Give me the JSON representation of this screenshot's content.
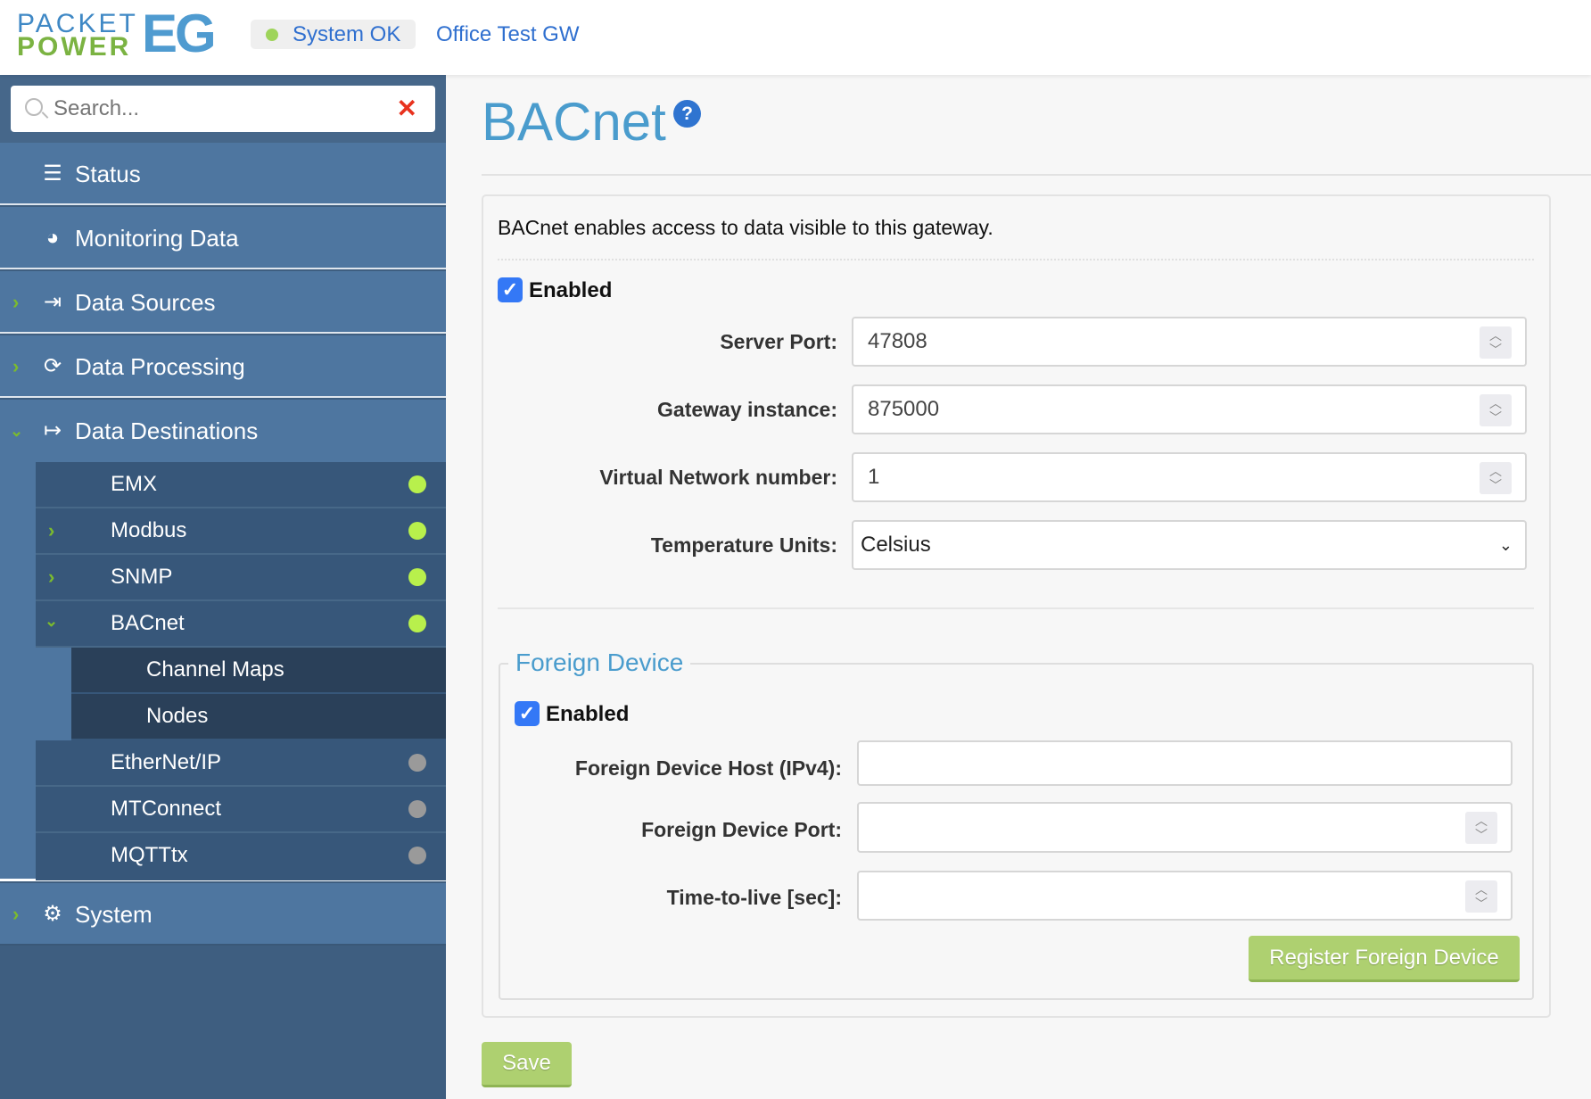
{
  "header": {
    "logo": {
      "line1": "PACKET",
      "line2": "POWER",
      "suffix": "EG"
    },
    "status": "System OK",
    "gateway": "Office Test GW",
    "status_color": "#9ed45a"
  },
  "sidebar": {
    "search_placeholder": "Search...",
    "items": [
      {
        "label": "Status",
        "icon": "list-icon"
      },
      {
        "label": "Monitoring Data",
        "icon": "dashboard-gauge-icon"
      },
      {
        "label": "Data Sources",
        "icon": "sign-in-icon"
      },
      {
        "label": "Data Processing",
        "icon": "refresh-icon"
      },
      {
        "label": "Data Destinations",
        "icon": "sign-out-icon"
      },
      {
        "label": "System",
        "icon": "gear-icon"
      }
    ],
    "destinations": [
      {
        "label": "EMX",
        "status": "active"
      },
      {
        "label": "Modbus",
        "status": "active"
      },
      {
        "label": "SNMP",
        "status": "active"
      },
      {
        "label": "BACnet",
        "status": "active"
      },
      {
        "label": "EtherNet/IP",
        "status": "inactive"
      },
      {
        "label": "MTConnect",
        "status": "inactive"
      },
      {
        "label": "MQTTtx",
        "status": "inactive"
      }
    ],
    "bacnet_children": [
      "Channel Maps",
      "Nodes"
    ],
    "colors": {
      "active": "#b8f04c",
      "inactive": "#9a9a9a"
    }
  },
  "main": {
    "title": "BACnet",
    "help": "?",
    "description": "BACnet enables access to data visible to this gateway.",
    "enabled_label": "Enabled",
    "enabled": true,
    "fields": [
      {
        "label": "Server Port:",
        "value": "47808"
      },
      {
        "label": "Gateway instance:",
        "value": "875000"
      },
      {
        "label": "Virtual Network number:",
        "value": "1"
      },
      {
        "label": "Temperature Units:",
        "value": "Celsius"
      }
    ],
    "foreign_device": {
      "legend": "Foreign Device",
      "enabled_label": "Enabled",
      "enabled": true,
      "fields": [
        {
          "label": "Foreign Device Host (IPv4):",
          "value": ""
        },
        {
          "label": "Foreign Device Port:",
          "value": ""
        },
        {
          "label": "Time-to-live [sec]:",
          "value": ""
        }
      ],
      "register_label": "Register Foreign Device"
    },
    "save_label": "Save"
  }
}
